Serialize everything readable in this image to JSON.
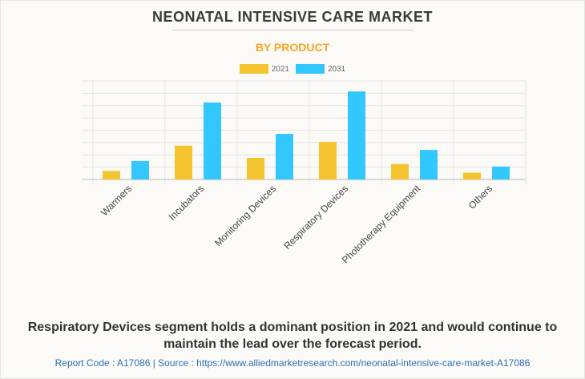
{
  "title": "NEONATAL INTENSIVE CARE MARKET",
  "subtitle": "BY PRODUCT",
  "colors": {
    "title": "#3a3a3a",
    "subtitle": "#f5a623",
    "series_2021": "#f4c430",
    "series_2031": "#33c7ff",
    "source": "#2d6fb7"
  },
  "chart_data": {
    "type": "bar",
    "title": "NEONATAL INTENSIVE CARE MARKET",
    "subtitle": "BY PRODUCT",
    "xlabel": "",
    "ylabel": "",
    "ylim": [
      0,
      8
    ],
    "grid": true,
    "y_tick_labels_shown": false,
    "legend_position": "top-center",
    "categories": [
      "Warmers",
      "Incubators",
      "Monitoring Devices",
      "Respiratory Devices",
      "Phototherapy Equipment",
      "Others"
    ],
    "series": [
      {
        "name": "2021",
        "color": "#f4c430",
        "values": [
          0.7,
          2.75,
          1.75,
          3.05,
          1.25,
          0.55
        ]
      },
      {
        "name": "2031",
        "color": "#33c7ff",
        "values": [
          1.5,
          6.25,
          3.7,
          7.15,
          2.4,
          1.05
        ]
      }
    ]
  },
  "caption": "Respiratory Devices segment holds a dominant position in 2021 and would continue to maintain the lead over the forecast period.",
  "source_line": "Report Code : A17086  |  Source : https://www.alliedmarketresearch.com/neonatal-intensive-care-market-A17086"
}
